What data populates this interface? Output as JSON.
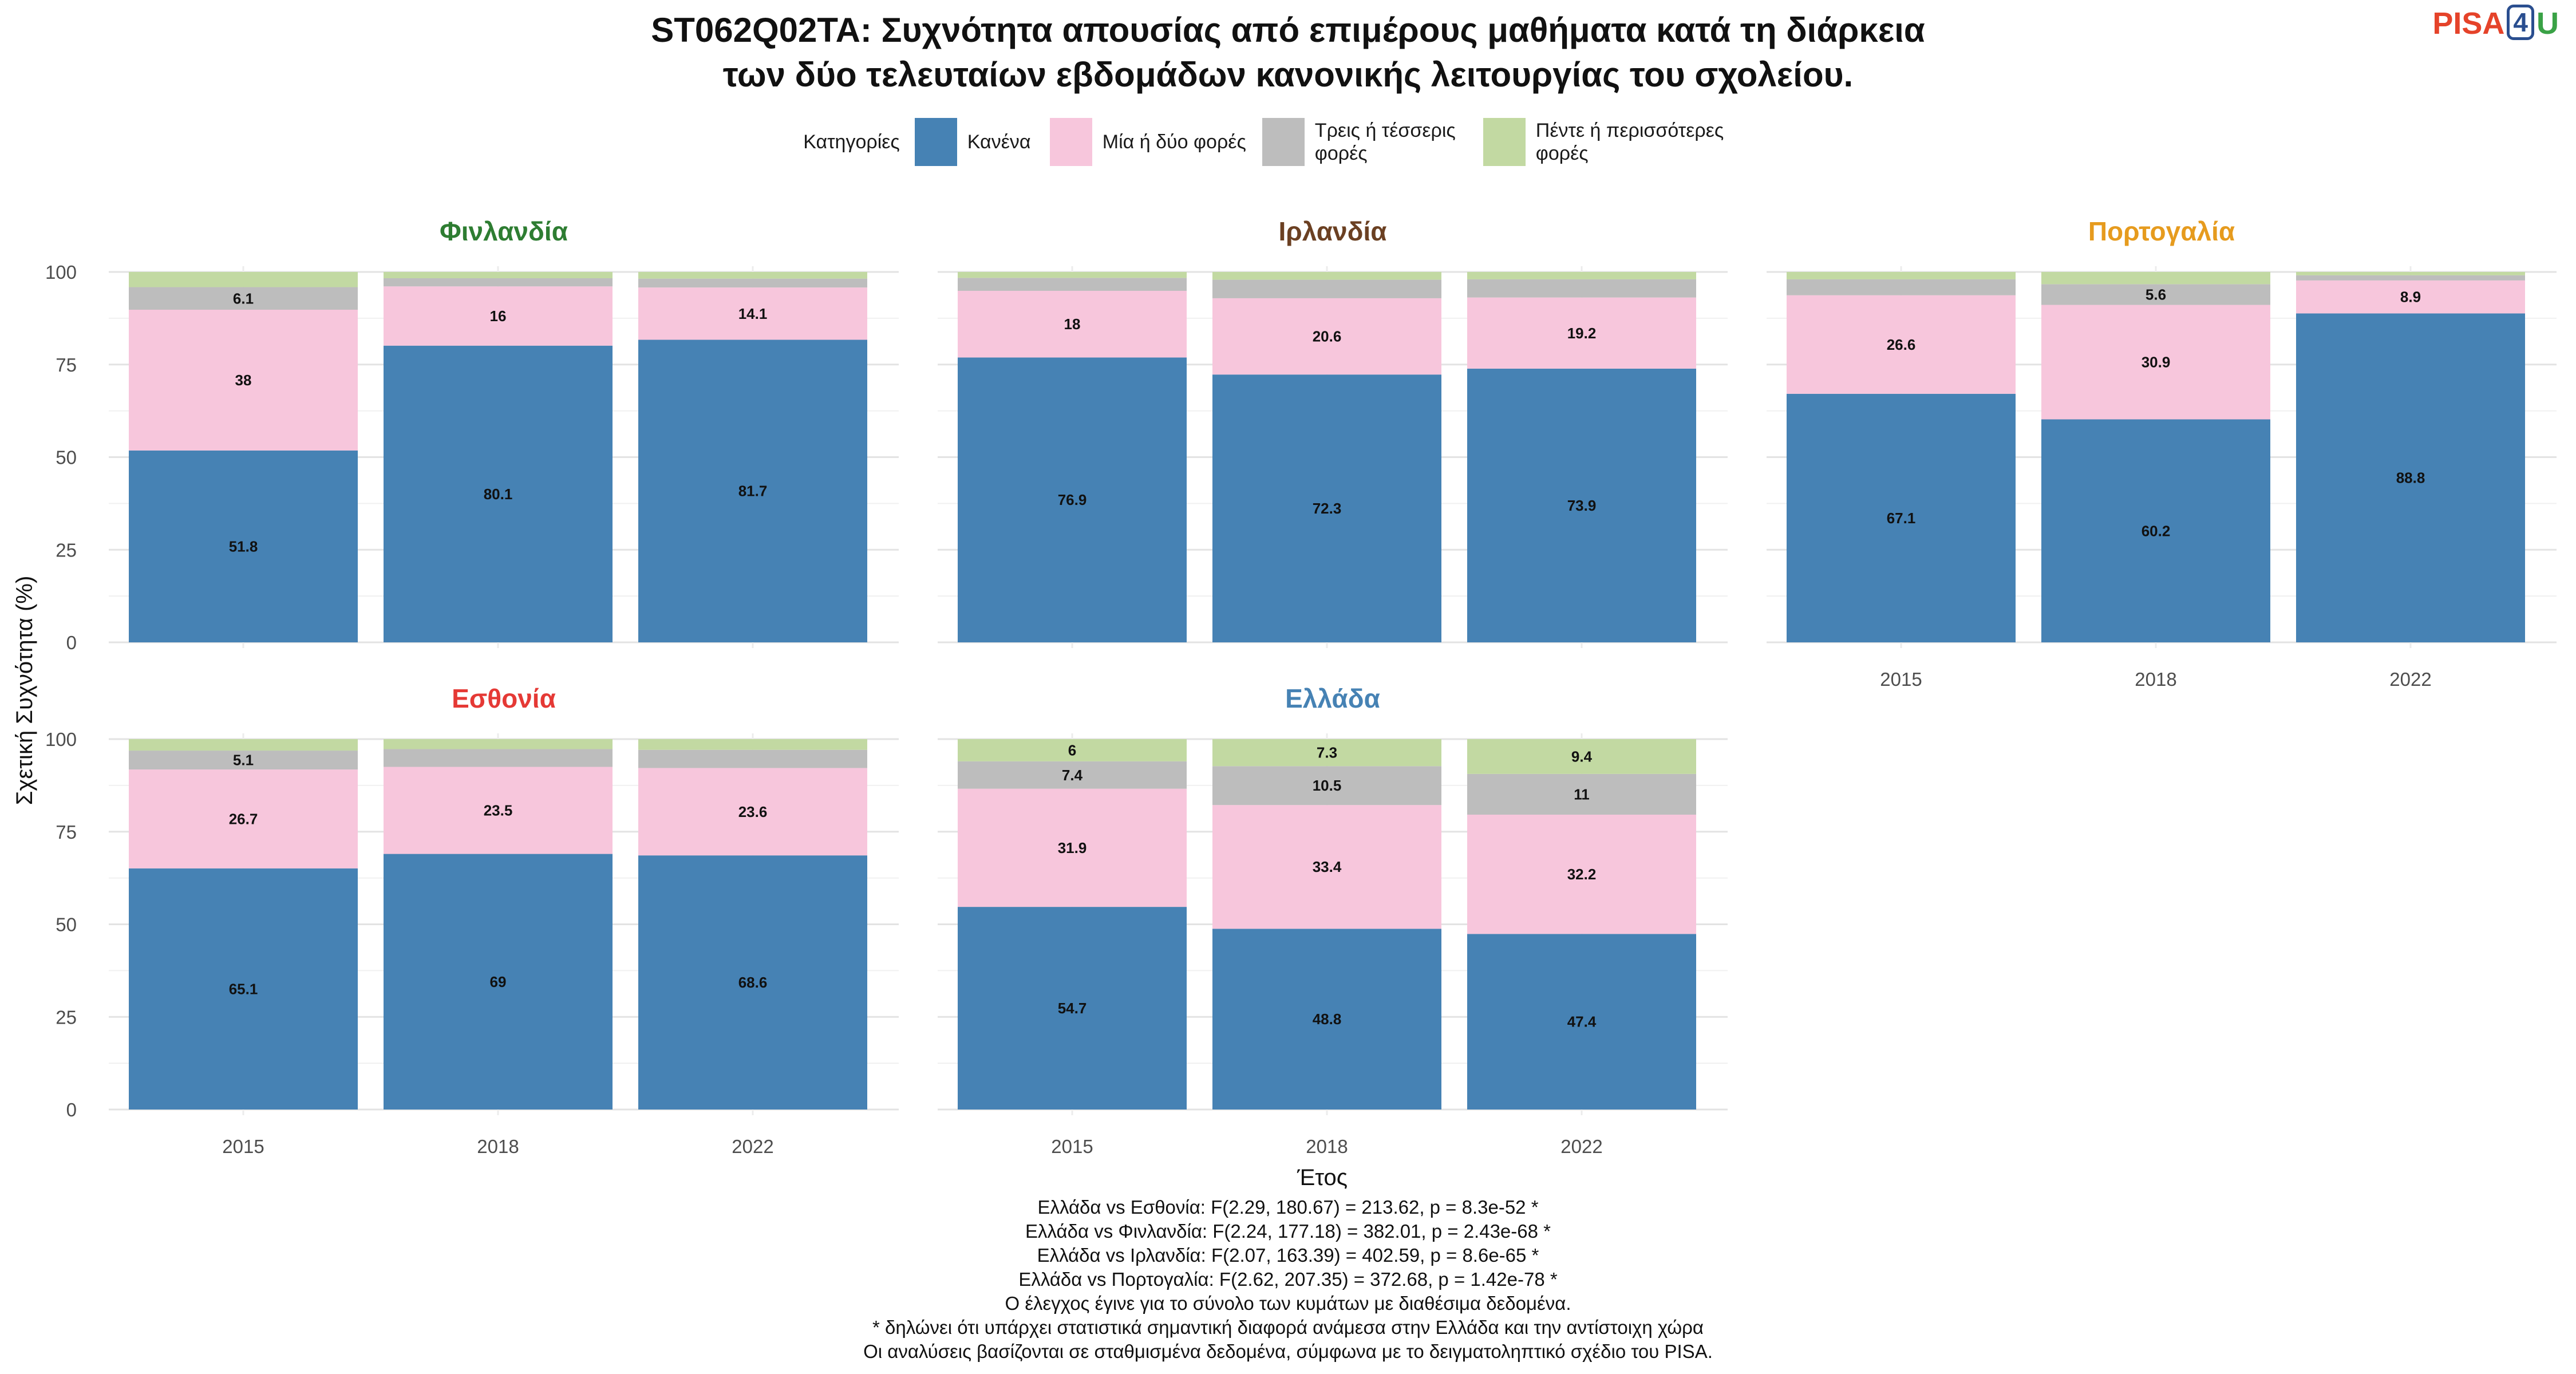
{
  "title_lines": [
    "ST062Q02TA: Συχνότητα απουσίας από επιμέρους μαθήματα κατά τη διάρκεια",
    "των δύο τελευταίων εβδομάδων κανονικής λειτουργίας του σχολείου."
  ],
  "logo": {
    "part1": "PISA",
    "part2": "4",
    "part3": "U"
  },
  "legend": {
    "title": "Κατηγορίες",
    "items": [
      {
        "label": "Κανένα",
        "color": "#4682b4"
      },
      {
        "label": "Μία ή δύο φορές",
        "color": "#f7c6dc"
      },
      {
        "label": "Τρεις ή τέσσερις φορές",
        "color": "#bdbdbd"
      },
      {
        "label": "Πέντε ή περισσότερες φορές",
        "color": "#c2d9a2"
      }
    ]
  },
  "chart_data": {
    "type": "bar",
    "stacked": true,
    "xlabel": "Έτος",
    "ylabel": "Σχετική Συχνότητα (%)",
    "ylim": [
      0,
      100
    ],
    "yticks": [
      0,
      25,
      50,
      75,
      100
    ],
    "categories": [
      "2015",
      "2018",
      "2022"
    ],
    "series_names": [
      "Κανένα",
      "Μία ή δύο φορές",
      "Τρεις ή τέσσερις φορές",
      "Πέντε ή περισσότερες φορές"
    ],
    "colors": [
      "#4682b4",
      "#f7c6dc",
      "#bdbdbd",
      "#c2d9a2"
    ],
    "grid": true,
    "legend_position": "top",
    "panels": [
      {
        "name": "Φινλανδία",
        "title_color": "#2e7d32",
        "values": [
          [
            51.8,
            38,
            6.1,
            4.1
          ],
          [
            80.1,
            16,
            2.2,
            1.7
          ],
          [
            81.7,
            14.1,
            2.4,
            1.8
          ]
        ],
        "labels": [
          [
            "51.8",
            "38",
            "6.1",
            ""
          ],
          [
            "80.1",
            "16",
            "",
            ""
          ],
          [
            "81.7",
            "14.1",
            "",
            ""
          ]
        ]
      },
      {
        "name": "Ιρλανδία",
        "title_color": "#6b4022",
        "values": [
          [
            76.9,
            18,
            3.5,
            1.6
          ],
          [
            72.3,
            20.6,
            5.0,
            2.1
          ],
          [
            73.9,
            19.2,
            4.9,
            2.0
          ]
        ],
        "labels": [
          [
            "76.9",
            "18",
            "",
            ""
          ],
          [
            "72.3",
            "20.6",
            "",
            ""
          ],
          [
            "73.9",
            "19.2",
            "",
            ""
          ]
        ]
      },
      {
        "name": "Πορτογαλία",
        "title_color": "#e69b1e",
        "values": [
          [
            67.1,
            26.6,
            4.3,
            2.0
          ],
          [
            60.2,
            30.9,
            5.6,
            3.3
          ],
          [
            88.8,
            8.9,
            1.4,
            0.9
          ]
        ],
        "labels": [
          [
            "67.1",
            "26.6",
            "",
            ""
          ],
          [
            "60.2",
            "30.9",
            "5.6",
            ""
          ],
          [
            "88.8",
            "8.9",
            "",
            ""
          ]
        ]
      },
      {
        "name": "Εσθονία",
        "title_color": "#e53935",
        "values": [
          [
            65.1,
            26.7,
            5.1,
            3.1
          ],
          [
            69,
            23.5,
            4.8,
            2.7
          ],
          [
            68.6,
            23.6,
            4.9,
            2.9
          ]
        ],
        "labels": [
          [
            "65.1",
            "26.7",
            "5.1",
            ""
          ],
          [
            "69",
            "23.5",
            "",
            ""
          ],
          [
            "68.6",
            "23.6",
            "",
            ""
          ]
        ]
      },
      {
        "name": "Ελλάδα",
        "title_color": "#4682b4",
        "values": [
          [
            54.7,
            31.9,
            7.4,
            6
          ],
          [
            48.8,
            33.4,
            10.5,
            7.3
          ],
          [
            47.4,
            32.2,
            11,
            9.4
          ]
        ],
        "labels": [
          [
            "54.7",
            "31.9",
            "7.4",
            "6"
          ],
          [
            "48.8",
            "33.4",
            "10.5",
            "7.3"
          ],
          [
            "47.4",
            "32.2",
            "11",
            "9.4"
          ]
        ]
      }
    ]
  },
  "notes": [
    "Ελλάδα vs Εσθονία: F(2.29, 180.67) = 213.62, p = 8.3e-52 *",
    "Ελλάδα vs Φινλανδία: F(2.24, 177.18) = 382.01, p = 2.43e-68 *",
    "Ελλάδα vs Ιρλανδία: F(2.07, 163.39) = 402.59, p = 8.6e-65 *",
    "Ελλάδα vs Πορτογαλία: F(2.62, 207.35) = 372.68, p = 1.42e-78 *",
    "Ο έλεγχος έγινε για το σύνολο των κυμάτων με διαθέσιμα δεδομένα.",
    "* δηλώνει ότι υπάρχει στατιστικά σημαντική διαφορά ανάμεσα στην Ελλάδα και την αντίστοιχη χώρα",
    "Οι αναλύσεις βασίζονται σε σταθμισμένα δεδομένα, σύμφωνα με το δειγματοληπτικό σχέδιο του PISA."
  ]
}
